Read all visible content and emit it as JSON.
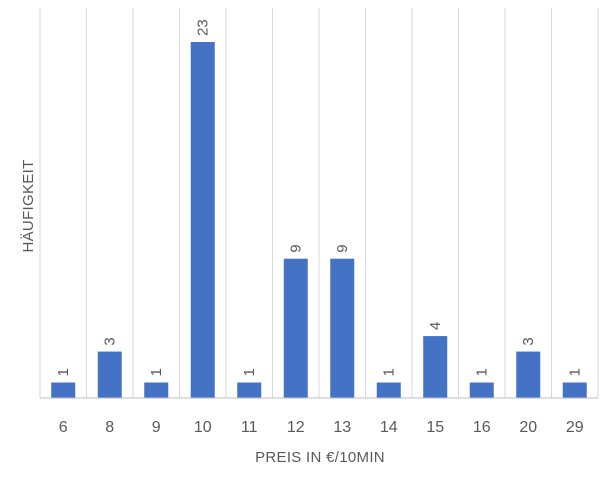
{
  "chart_data": {
    "type": "bar",
    "categories": [
      "6",
      "8",
      "9",
      "10",
      "11",
      "12",
      "13",
      "14",
      "15",
      "16",
      "20",
      "29"
    ],
    "values": [
      1,
      3,
      1,
      23,
      1,
      9,
      9,
      1,
      4,
      1,
      3,
      1
    ],
    "data_labels": [
      "1",
      "3",
      "1",
      "23",
      "1",
      "9",
      "9",
      "1",
      "4",
      "1",
      "3",
      "1"
    ],
    "xlabel": "PREIS IN €/10MIN",
    "ylabel": "HÄUFIGKEIT",
    "ylim": [
      0,
      25
    ],
    "grid": "vertical",
    "legend": "none",
    "colors": {
      "bar": "#4472C4",
      "grid": "#D9D9D9",
      "axis": "#BFBFBF",
      "text": "#595959"
    }
  }
}
